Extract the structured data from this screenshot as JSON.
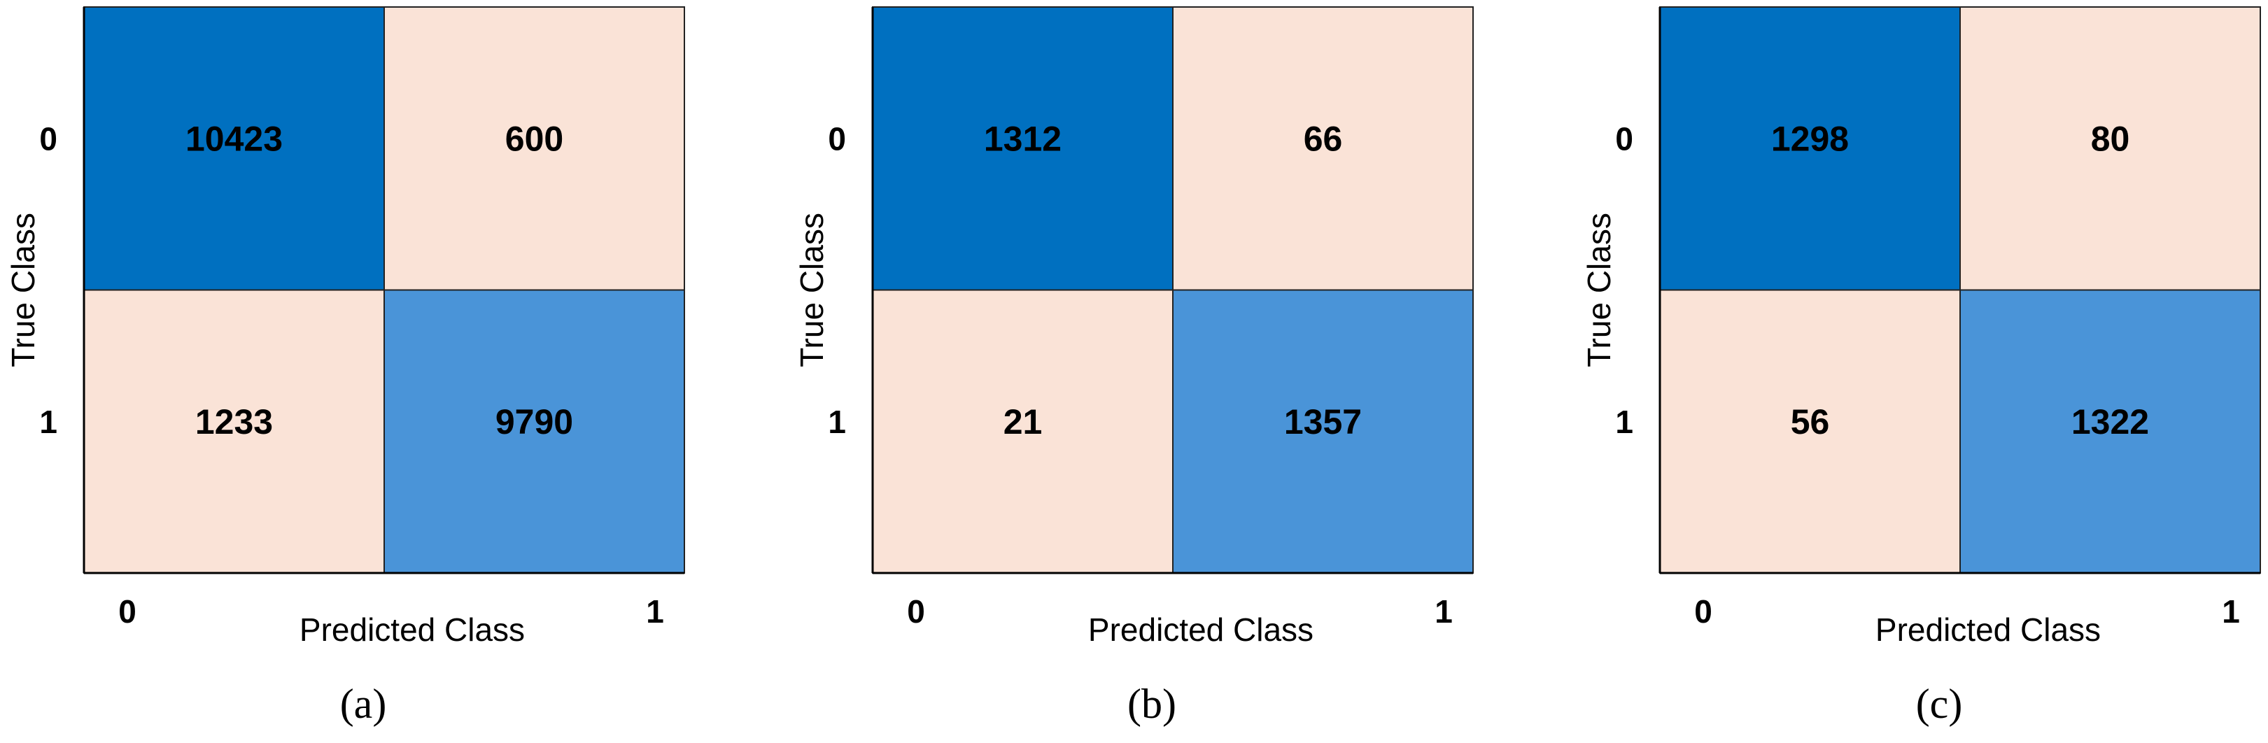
{
  "chart_data": [
    {
      "type": "heatmap",
      "x_categories": [
        "0",
        "1"
      ],
      "y_categories": [
        "0",
        "1"
      ],
      "xlabel": "Predicted Class",
      "ylabel": "True Class",
      "caption": "(a)",
      "values": [
        [
          10423,
          600
        ],
        [
          1233,
          9790
        ]
      ],
      "colors": [
        [
          "#0070c0",
          "#fae3d7"
        ],
        [
          "#fae3d7",
          "#4a94d8"
        ]
      ]
    },
    {
      "type": "heatmap",
      "x_categories": [
        "0",
        "1"
      ],
      "y_categories": [
        "0",
        "1"
      ],
      "xlabel": "Predicted Class",
      "ylabel": "True Class",
      "caption": "(b)",
      "values": [
        [
          1312,
          66
        ],
        [
          21,
          1357
        ]
      ],
      "colors": [
        [
          "#0070c0",
          "#fae3d7"
        ],
        [
          "#fae3d7",
          "#4a94d8"
        ]
      ]
    },
    {
      "type": "heatmap",
      "x_categories": [
        "0",
        "1"
      ],
      "y_categories": [
        "0",
        "1"
      ],
      "xlabel": "Predicted Class",
      "ylabel": "True Class",
      "caption": "(c)",
      "values": [
        [
          1298,
          80
        ],
        [
          56,
          1322
        ]
      ],
      "colors": [
        [
          "#0070c0",
          "#fae3d7"
        ],
        [
          "#fae3d7",
          "#4a94d8"
        ]
      ]
    }
  ]
}
